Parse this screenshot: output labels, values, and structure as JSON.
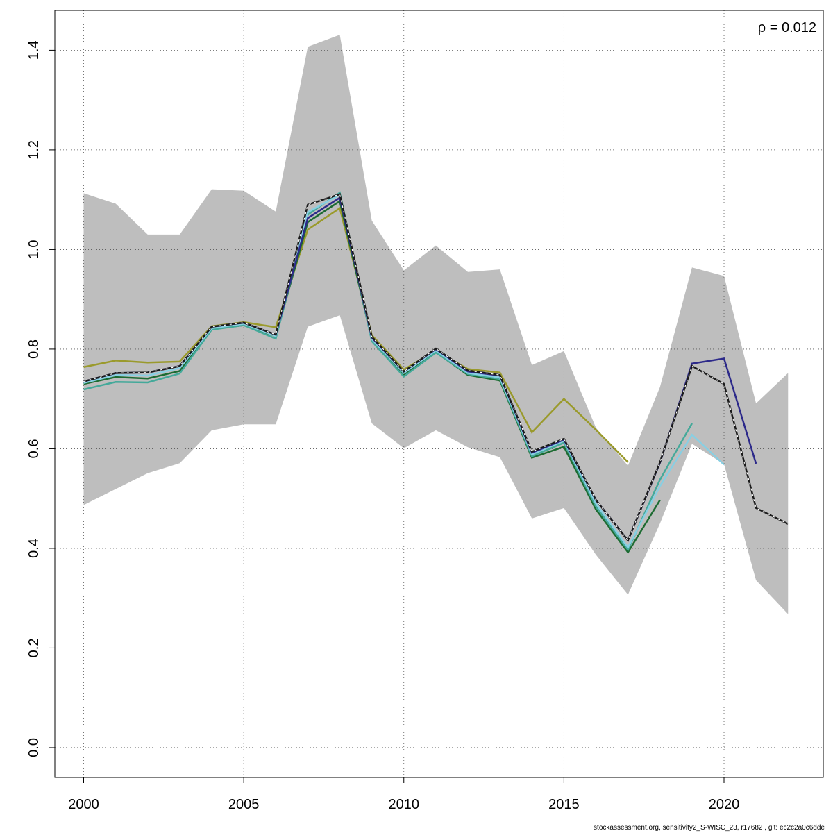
{
  "chart_data": {
    "type": "area",
    "xlim": [
      1999.1,
      2023.1
    ],
    "ylim": [
      -0.06,
      1.48
    ],
    "x_ticks": [
      2000,
      2005,
      2010,
      2015,
      2020
    ],
    "y_ticks": [
      0.0,
      0.2,
      0.4,
      0.6,
      0.8,
      1.0,
      1.2,
      1.4
    ],
    "x_tick_labels": [
      "2000",
      "2005",
      "2010",
      "2015",
      "2020"
    ],
    "y_tick_labels": [
      "0.0",
      "0.2",
      "0.4",
      "0.6",
      "0.8",
      "1.0",
      "1.2",
      "1.4"
    ],
    "grid": true,
    "annotation": "ρ = 0.012",
    "confidence_band": {
      "color": "#bebebe",
      "x": [
        2000,
        2001,
        2002,
        2003,
        2004,
        2005,
        2006,
        2007,
        2008,
        2009,
        2010,
        2011,
        2012,
        2013,
        2014,
        2015,
        2016,
        2017,
        2018,
        2019,
        2020,
        2021,
        2022
      ],
      "lower": [
        0.487,
        0.519,
        0.551,
        0.571,
        0.637,
        0.649,
        0.649,
        0.845,
        0.868,
        0.651,
        0.601,
        0.637,
        0.603,
        0.583,
        0.46,
        0.481,
        0.387,
        0.307,
        0.45,
        0.61,
        0.569,
        0.336,
        0.268
      ],
      "upper": [
        1.113,
        1.092,
        1.03,
        1.03,
        1.121,
        1.118,
        1.076,
        1.407,
        1.431,
        1.058,
        0.958,
        1.008,
        0.955,
        0.96,
        0.768,
        0.796,
        0.642,
        0.566,
        0.724,
        0.964,
        0.947,
        0.691,
        0.752
      ]
    },
    "series": [
      {
        "color": "#1a1a1a",
        "style": "dashed-base",
        "x": [
          2000,
          2001,
          2002,
          2003,
          2004,
          2005,
          2006,
          2007,
          2008,
          2009,
          2010,
          2011,
          2012,
          2013,
          2014,
          2015,
          2016,
          2017,
          2018,
          2019,
          2020,
          2021,
          2022
        ],
        "values": [
          0.735,
          0.752,
          0.753,
          0.766,
          0.845,
          0.853,
          0.829,
          1.09,
          1.111,
          0.825,
          0.755,
          0.801,
          0.757,
          0.748,
          0.594,
          0.62,
          0.497,
          0.416,
          0.573,
          0.766,
          0.73,
          0.481,
          0.449
        ]
      },
      {
        "color": "#2d2a8a",
        "x": [
          2000,
          2001,
          2002,
          2003,
          2004,
          2005,
          2006,
          2007,
          2008,
          2009,
          2010,
          2011,
          2012,
          2013,
          2014,
          2015,
          2016,
          2017,
          2018,
          2019,
          2020,
          2021
        ],
        "values": [
          0.735,
          0.752,
          0.753,
          0.766,
          0.845,
          0.853,
          0.829,
          1.063,
          1.104,
          0.823,
          0.755,
          0.8,
          0.755,
          0.747,
          0.592,
          0.618,
          0.497,
          0.416,
          0.572,
          0.771,
          0.781,
          0.57
        ]
      },
      {
        "color": "#88cfe3",
        "x": [
          2000,
          2001,
          2002,
          2003,
          2004,
          2005,
          2006,
          2007,
          2008,
          2009,
          2010,
          2011,
          2012,
          2013,
          2014,
          2015,
          2016,
          2017,
          2018,
          2019,
          2020
        ],
        "values": [
          0.732,
          0.748,
          0.747,
          0.762,
          0.842,
          0.851,
          0.826,
          1.075,
          1.11,
          0.82,
          0.752,
          0.797,
          0.752,
          0.743,
          0.589,
          0.616,
          0.49,
          0.402,
          0.525,
          0.628,
          0.568
        ]
      },
      {
        "color": "#44a99a",
        "x": [
          2000,
          2001,
          2002,
          2003,
          2004,
          2005,
          2006,
          2007,
          2008,
          2009,
          2010,
          2011,
          2012,
          2013,
          2014,
          2015,
          2016,
          2017,
          2018,
          2019
        ],
        "values": [
          0.719,
          0.734,
          0.733,
          0.751,
          0.839,
          0.848,
          0.821,
          1.07,
          1.114,
          0.816,
          0.745,
          0.793,
          0.75,
          0.74,
          0.585,
          0.612,
          0.484,
          0.397,
          0.538,
          0.651
        ]
      },
      {
        "color": "#1d6b32",
        "x": [
          2000,
          2001,
          2002,
          2003,
          2004,
          2005,
          2006,
          2007,
          2008,
          2009,
          2010,
          2011,
          2012,
          2013,
          2014,
          2015,
          2016,
          2017,
          2018
        ],
        "values": [
          0.73,
          0.744,
          0.741,
          0.756,
          0.84,
          0.848,
          0.826,
          1.055,
          1.097,
          0.818,
          0.749,
          0.794,
          0.748,
          0.737,
          0.582,
          0.604,
          0.478,
          0.392,
          0.497
        ]
      },
      {
        "color": "#9a9a2c",
        "x": [
          2000,
          2001,
          2002,
          2003,
          2004,
          2005,
          2006,
          2007,
          2008,
          2009,
          2010,
          2011,
          2012,
          2013,
          2014,
          2015,
          2016,
          2017
        ],
        "values": [
          0.764,
          0.777,
          0.773,
          0.775,
          0.846,
          0.854,
          0.844,
          1.04,
          1.083,
          0.828,
          0.759,
          0.797,
          0.76,
          0.753,
          0.633,
          0.7,
          0.638,
          0.573
        ]
      }
    ]
  },
  "footer_text": "stockassessment.org, sensitivity2_S-WISC_23, r17682 , git: ec2c2a0c6dde"
}
